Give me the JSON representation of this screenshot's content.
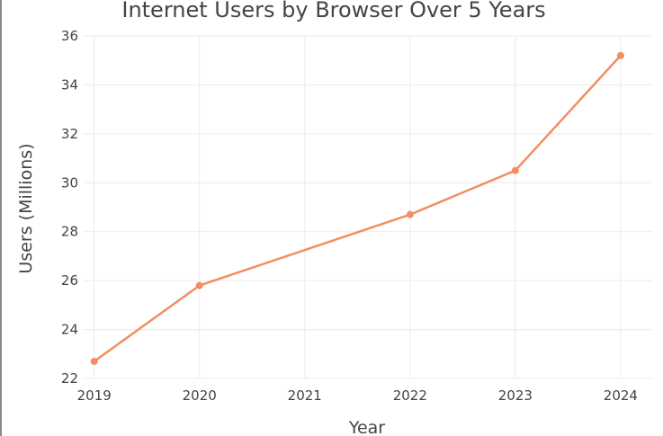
{
  "chart_data": {
    "type": "line",
    "title": "Internet Users by Browser Over 5 Years",
    "xlabel": "Year",
    "ylabel": "Users (Millions)",
    "x": [
      2019,
      2020,
      2022,
      2023,
      2024
    ],
    "x_ticks": [
      "2019",
      "2020",
      "2021",
      "2022",
      "2023",
      "2024"
    ],
    "y_ticks": [
      "22",
      "24",
      "26",
      "28",
      "30",
      "32",
      "34",
      "36"
    ],
    "xlim": [
      2018.9,
      2024.3
    ],
    "ylim": [
      22,
      36
    ],
    "grid": true,
    "series": [
      {
        "values": [
          22.7,
          25.8,
          28.7,
          30.5,
          35.2
        ],
        "color": "#f28e62"
      }
    ]
  }
}
